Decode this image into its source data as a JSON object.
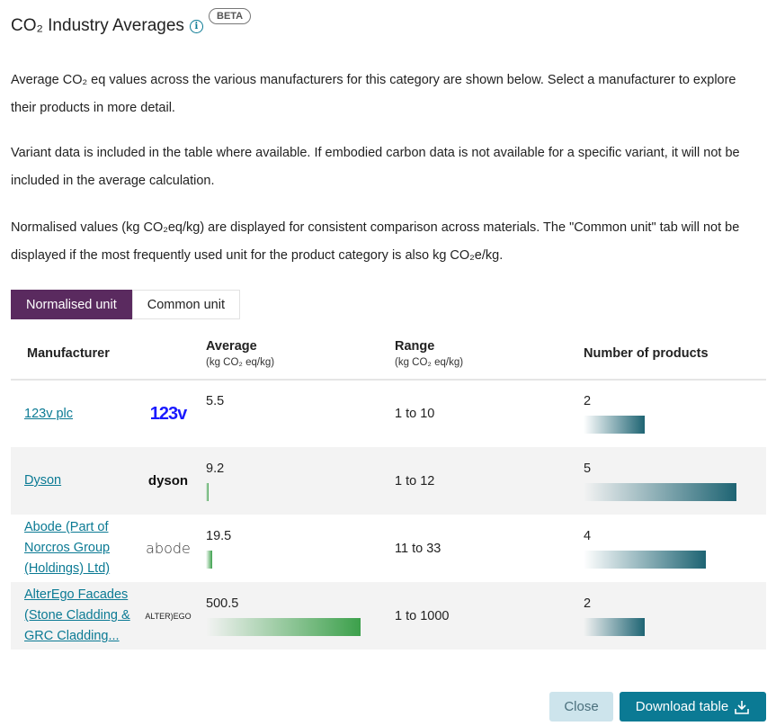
{
  "header": {
    "title": "CO₂ Industry Averages",
    "badge": "BETA",
    "info_icon": "info-icon"
  },
  "paragraphs": [
    "Average CO₂ eq values across the various manufacturers for this category are shown below. Select a manufacturer to explore their products in more detail.",
    "Variant data is included in the table where available. If embodied carbon data is not available for a specific variant, it will not be included in the average calculation.",
    "Normalised values (kg CO₂eq/kg) are displayed for consistent comparison across materials. The \"Common unit\" tab will not be displayed if the most frequently used unit for the product category is also kg CO₂e/kg."
  ],
  "tabs": [
    {
      "label": "Normalised unit",
      "active": true
    },
    {
      "label": "Common unit",
      "active": false
    }
  ],
  "table": {
    "headers": {
      "manufacturer": "Manufacturer",
      "average": "Average",
      "average_unit": "(kg CO₂ eq/kg)",
      "range": "Range",
      "range_unit": "(kg CO₂ eq/kg)",
      "products": "Number of products"
    },
    "rows": [
      {
        "name": "123v plc",
        "logo": "123v",
        "average": "5.5",
        "average_value": 5.5,
        "range": "1 to 10",
        "products": "2",
        "products_value": 2
      },
      {
        "name": "Dyson",
        "logo": "dyson",
        "average": "9.2",
        "average_value": 9.2,
        "range": "1 to 12",
        "products": "5",
        "products_value": 5
      },
      {
        "name": "Abode (Part of Norcros Group (Holdings) Ltd)",
        "logo": "abode",
        "average": "19.5",
        "average_value": 19.5,
        "range": "11 to 33",
        "products": "4",
        "products_value": 4
      },
      {
        "name": "AlterEgo Facades (Stone Cladding & GRC Cladding...",
        "logo": "ALTER)EGO",
        "average": "500.5",
        "average_value": 500.5,
        "range": "1 to 1000",
        "products": "2",
        "products_value": 2
      }
    ]
  },
  "footer": {
    "close": "Close",
    "download": "Download table",
    "download_icon": "download-icon"
  },
  "colors": {
    "accent": "#0b7a94",
    "tab_active": "#5a2a5f",
    "avg_bar": "#3ca04b",
    "products_bar": "#1e6473"
  }
}
